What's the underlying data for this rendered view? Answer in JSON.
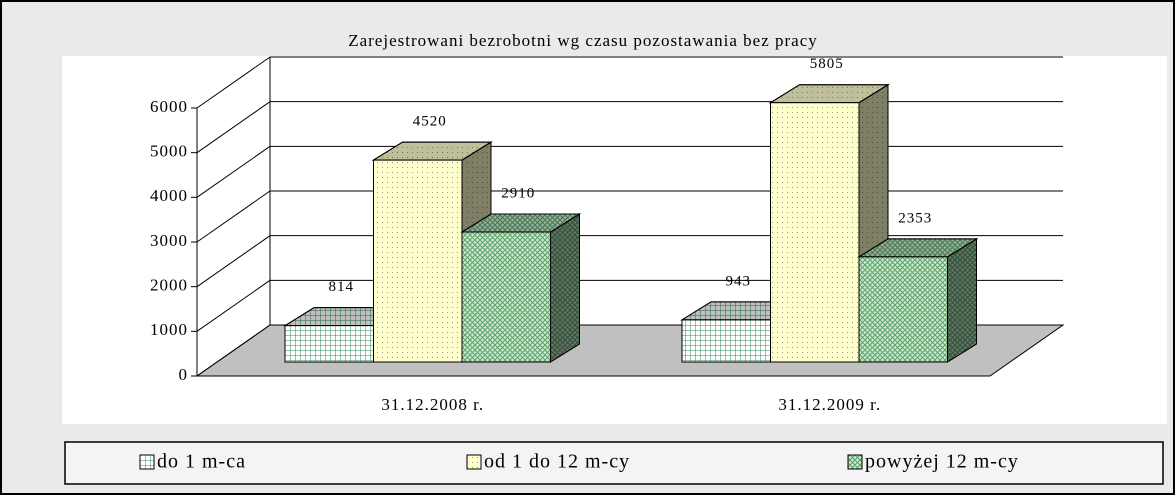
{
  "chart_data": {
    "type": "bar3d",
    "title": "Zarejestrowani bezrobotni wg czasu pozostawania bez pracy",
    "categories": [
      "31.12.2008 r.",
      "31.12.2009 r."
    ],
    "series": [
      {
        "name": "do 1 m-ca",
        "color": "#2e8b57",
        "values": [
          814,
          943
        ]
      },
      {
        "name": "od 1 do 12 m-cy",
        "color": "#ffffcc",
        "values": [
          4520,
          5805
        ]
      },
      {
        "name": "powyżej 12 m-cy",
        "color": "#5aa36a",
        "values": [
          2910,
          2353
        ]
      }
    ],
    "ylim": [
      0,
      6000
    ],
    "yticks": [
      0,
      1000,
      2000,
      3000,
      4000,
      5000,
      6000
    ],
    "grid": true,
    "legend": "bottom"
  }
}
